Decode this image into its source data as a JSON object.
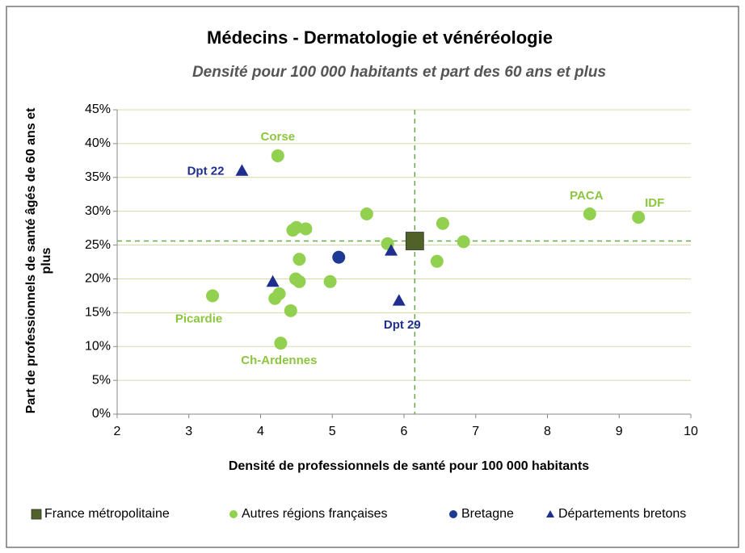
{
  "chart_data": {
    "type": "scatter",
    "title": "Médecins - Dermatologie et vénéréologie",
    "subtitle": "Densité pour 100 000 habitants et part des 60 ans et plus",
    "x_label": "Densité de professionnels de santé pour 100 000 habitants",
    "y_label": "Part  de professionnels de santé âgés de 60 ans et plus",
    "xlim": [
      2,
      10
    ],
    "xticks": [
      2,
      3,
      4,
      5,
      6,
      7,
      8,
      9,
      10
    ],
    "ylim": [
      0,
      45
    ],
    "yticks": [
      {
        "value": 0,
        "label": "0%"
      },
      {
        "value": 5,
        "label": "5%"
      },
      {
        "value": 10,
        "label": "10%"
      },
      {
        "value": 15,
        "label": "15%"
      },
      {
        "value": 20,
        "label": "20%"
      },
      {
        "value": 25,
        "label": "25%"
      },
      {
        "value": 30,
        "label": "30%"
      },
      {
        "value": 35,
        "label": "35%"
      },
      {
        "value": 40,
        "label": "40%"
      },
      {
        "value": 45,
        "label": "45%"
      }
    ],
    "grid": true,
    "legend": "bottom",
    "series": [
      {
        "name": "France métropolitaine",
        "color": "#4f6228",
        "marker": "square",
        "x": [
          6.15
        ],
        "values": [
          25.6
        ],
        "labels": [
          null
        ]
      },
      {
        "name": "Autres régions françaises",
        "color": "#92d050",
        "marker": "circle",
        "x": [
          4.24,
          3.33,
          4.28,
          8.59,
          9.27,
          5.48,
          6.54,
          6.83,
          6.46,
          5.77,
          4.45,
          4.5,
          4.63,
          4.54,
          4.49,
          4.54,
          4.97,
          4.2,
          4.26,
          4.42
        ],
        "values": [
          38.2,
          17.5,
          10.5,
          29.6,
          29.1,
          29.6,
          28.2,
          25.5,
          22.6,
          25.2,
          27.2,
          27.6,
          27.4,
          22.9,
          20.0,
          19.6,
          19.6,
          17.1,
          17.8,
          15.3
        ],
        "labels": [
          "Corse",
          "Picardie",
          "Ch-Ardennes",
          "PACA",
          "IDF",
          null,
          null,
          null,
          null,
          null,
          null,
          null,
          null,
          null,
          null,
          null,
          null,
          null,
          null,
          null
        ]
      },
      {
        "name": "Bretagne",
        "color": "#1f3a93",
        "marker": "circle",
        "x": [
          5.09
        ],
        "values": [
          23.2
        ],
        "labels": [
          null
        ]
      },
      {
        "name": "Départements bretons",
        "color": "#1f2f8f",
        "marker": "triangle",
        "x": [
          3.74,
          4.17,
          5.82,
          5.93
        ],
        "values": [
          36.0,
          19.6,
          24.2,
          16.8
        ],
        "labels": [
          "Dpt 22",
          null,
          null,
          "Dpt 29"
        ]
      }
    ]
  }
}
